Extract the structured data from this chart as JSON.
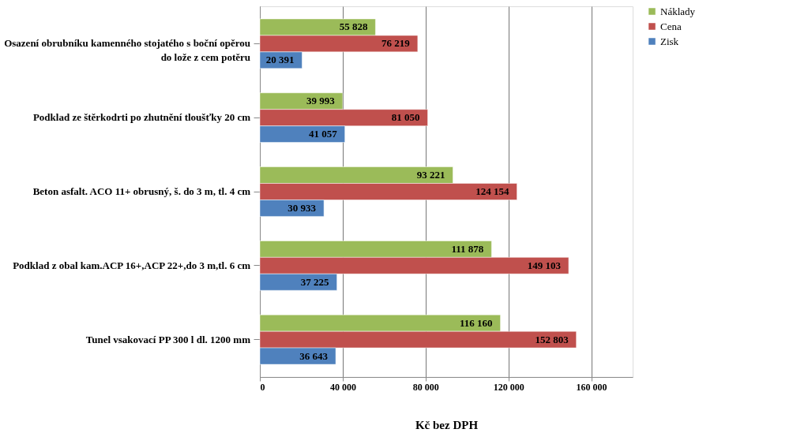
{
  "chart_data": {
    "type": "bar",
    "orientation": "horizontal",
    "xlabel": "Kč bez DPH",
    "categories": [
      "Osazení obrubníku kamenného stojatého s boční opěrou do lože z cem potěru",
      "Podklad ze štěrkodrti po zhutnění tloušťky 20 cm",
      "Beton asfalt. ACO 11+ obrusný, š. do 3 m, tl. 4 cm",
      "Podklad z obal kam.ACP 16+,ACP 22+,do 3 m,tl. 6 cm",
      "Tunel vsakovací PP 300 l  dl. 1200 mm"
    ],
    "series": [
      {
        "name": "Náklady",
        "color": "#9bbb59",
        "values": [
          55828,
          39993,
          93221,
          111878,
          116160
        ],
        "value_labels": [
          "55 828",
          "39 993",
          "93 221",
          "111 878",
          "116 160"
        ]
      },
      {
        "name": "Cena",
        "color": "#c0504d",
        "values": [
          76219,
          81050,
          124154,
          149103,
          152803
        ],
        "value_labels": [
          "76 219",
          "81 050",
          "124 154",
          "149 103",
          "152 803"
        ]
      },
      {
        "name": "Zisk",
        "color": "#4f81bd",
        "values": [
          20391,
          41057,
          30933,
          37225,
          36643
        ],
        "value_labels": [
          "20 391",
          "41 057",
          "30 933",
          "37 225",
          "36 643"
        ]
      }
    ],
    "xlim": [
      0,
      180000
    ],
    "xticks": [
      0,
      {
        "value": 40000,
        "label": "40 000"
      },
      {
        "value": 80000,
        "label": "80 000"
      },
      {
        "value": 120000,
        "label": "120 000"
      },
      {
        "value": 160000,
        "label": "160 000"
      }
    ],
    "grid": "x",
    "legend": "right"
  }
}
